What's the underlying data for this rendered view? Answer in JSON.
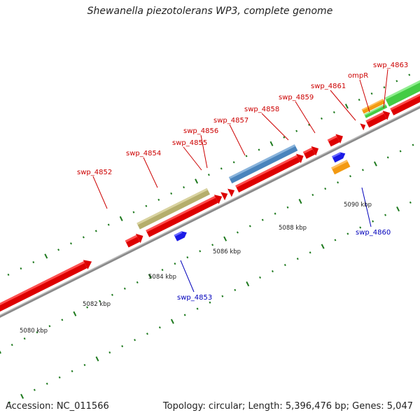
{
  "title": "Shewanella piezotolerans WP3, complete genome",
  "footer": {
    "accession": "Accession: NC_011566",
    "summary": "Topology: circular; Length: 5,396,476 bp; Genes: 5,047"
  },
  "colors": {
    "forward": "#ee0000",
    "reverse": "#1a1ae6",
    "olive": "#bdb776",
    "steelblue": "#4a84bc",
    "orange": "#f39a12",
    "green": "#44cc44",
    "backbone": "#8c8c8c",
    "tick": "#1e7a1e",
    "label_forward": "#cc0000",
    "label_reverse": "#0000bb"
  },
  "ticks": [
    {
      "label": "5080 kbp"
    },
    {
      "label": "5082 kbp"
    },
    {
      "label": "5084 kbp"
    },
    {
      "label": "5086 kbp"
    },
    {
      "label": "5088 kbp"
    },
    {
      "label": "5090 kbp"
    }
  ],
  "genes": [
    {
      "label": "swp_4852",
      "strand": "forward"
    },
    {
      "label": "swp_4853",
      "strand": "reverse"
    },
    {
      "label": "swp_4854",
      "strand": "forward"
    },
    {
      "label": "swp_4855",
      "strand": "forward"
    },
    {
      "label": "swp_4856",
      "strand": "forward"
    },
    {
      "label": "swp_4857",
      "strand": "forward"
    },
    {
      "label": "swp_4858",
      "strand": "forward"
    },
    {
      "label": "swp_4859",
      "strand": "forward"
    },
    {
      "label": "swp_4860",
      "strand": "reverse"
    },
    {
      "label": "swp_4861",
      "strand": "forward"
    },
    {
      "label": "ompR",
      "strand": "forward"
    },
    {
      "label": "swp_4863",
      "strand": "forward"
    }
  ]
}
